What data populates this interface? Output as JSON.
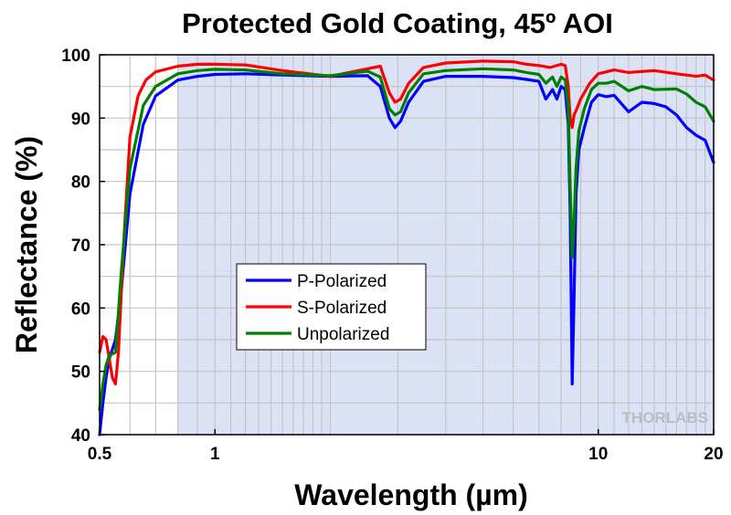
{
  "chart_data": {
    "type": "line",
    "title": "Protected Gold Coating, 45º AOI",
    "xlabel": "Wavelength (µm)",
    "ylabel": "Reflectance (%)",
    "xscale": "log",
    "xlim": [
      0.5,
      20
    ],
    "ylim": [
      40,
      100
    ],
    "x_ticks": [
      0.5,
      1,
      10,
      20
    ],
    "x_tick_labels": [
      "0.5",
      "1",
      "10",
      "20"
    ],
    "y_ticks": [
      40,
      50,
      60,
      70,
      80,
      90,
      100
    ],
    "y_tick_labels": [
      "40",
      "50",
      "60",
      "70",
      "80",
      "90",
      "100"
    ],
    "grid": true,
    "shaded_region": {
      "from": 0.8,
      "to": 20
    },
    "legend_placement": "center",
    "watermark": "THORLABS",
    "series": [
      {
        "name": "P-Polarized",
        "color": "#0000ff",
        "x": [
          0.5,
          0.51,
          0.52,
          0.53,
          0.55,
          0.57,
          0.6,
          0.65,
          0.7,
          0.8,
          0.9,
          1.0,
          1.2,
          1.5,
          2.0,
          2.5,
          2.7,
          2.85,
          2.95,
          3.05,
          3.2,
          3.5,
          4.0,
          5.0,
          6.0,
          6.5,
          7.0,
          7.3,
          7.6,
          7.8,
          8.0,
          8.2,
          8.35,
          8.45,
          8.55,
          8.65,
          8.75,
          8.9,
          9.2,
          9.6,
          10.0,
          10.5,
          11.0,
          12.0,
          13.0,
          14.0,
          15.0,
          16.0,
          17.0,
          18.0,
          19.0,
          20.0
        ],
        "y": [
          40,
          45,
          49,
          52,
          55,
          63,
          78,
          89,
          93.5,
          96,
          96.6,
          96.9,
          97,
          96.8,
          96.6,
          96.7,
          95,
          90,
          88.5,
          89.5,
          92.5,
          95.8,
          96.6,
          96.6,
          96.4,
          96.1,
          95.8,
          93,
          94.5,
          93,
          95,
          94.5,
          89,
          75,
          48,
          62,
          78,
          85,
          88.5,
          92.5,
          93.7,
          93.4,
          93.6,
          91,
          92.5,
          92.3,
          91.8,
          90.5,
          88.5,
          87.3,
          86.5,
          83
        ]
      },
      {
        "name": "S-Polarized",
        "color": "#ff0000",
        "x": [
          0.5,
          0.51,
          0.52,
          0.53,
          0.54,
          0.55,
          0.56,
          0.58,
          0.6,
          0.63,
          0.66,
          0.7,
          0.8,
          0.9,
          1.0,
          1.2,
          1.5,
          2.0,
          2.5,
          2.7,
          2.85,
          2.95,
          3.05,
          3.2,
          3.5,
          4.0,
          5.0,
          6.0,
          6.5,
          7.0,
          7.5,
          8.0,
          8.2,
          8.35,
          8.45,
          8.55,
          8.65,
          8.8,
          9.0,
          9.5,
          10.0,
          11.0,
          12.0,
          14.0,
          16.0,
          18.0,
          19.0,
          20.0
        ],
        "y": [
          53,
          55.5,
          55,
          52,
          49,
          48,
          53,
          72,
          87,
          93.5,
          96,
          97.3,
          98.2,
          98.5,
          98.5,
          98.4,
          97.5,
          96.6,
          97.8,
          98.2,
          94,
          92.5,
          93,
          95.5,
          98,
          98.7,
          99,
          98.9,
          98.5,
          98.3,
          98,
          98.5,
          98.3,
          95,
          90,
          88.5,
          90.5,
          91.5,
          93,
          95.5,
          97,
          97.6,
          97.2,
          97.5,
          97,
          96.6,
          96.8,
          96
        ]
      },
      {
        "name": "Unpolarized",
        "color": "#008000",
        "x": [
          0.5,
          0.51,
          0.52,
          0.53,
          0.55,
          0.57,
          0.6,
          0.65,
          0.7,
          0.8,
          0.9,
          1.0,
          1.2,
          1.5,
          2.0,
          2.5,
          2.7,
          2.85,
          2.95,
          3.05,
          3.2,
          3.5,
          4.0,
          5.0,
          6.0,
          6.5,
          7.0,
          7.3,
          7.6,
          7.8,
          8.0,
          8.2,
          8.35,
          8.45,
          8.55,
          8.65,
          8.75,
          8.9,
          9.2,
          9.6,
          10.0,
          10.5,
          11.0,
          12.0,
          13.0,
          14.0,
          16.0,
          17.0,
          18.0,
          19.0,
          20.0
        ],
        "y": [
          44,
          48,
          51,
          52.5,
          53,
          66,
          82,
          92,
          95,
          97,
          97.5,
          97.7,
          97.6,
          97,
          96.7,
          97.4,
          96.5,
          91.5,
          90.5,
          91,
          94,
          97,
          97.5,
          97.8,
          97.6,
          97.2,
          96.9,
          95.5,
          96.5,
          95,
          96.5,
          96,
          92,
          79,
          68,
          74,
          82,
          88,
          91.5,
          94.5,
          95.5,
          95.5,
          95.8,
          94.3,
          95,
          94.5,
          94.6,
          93.8,
          92.5,
          91.8,
          89.5
        ]
      }
    ]
  }
}
